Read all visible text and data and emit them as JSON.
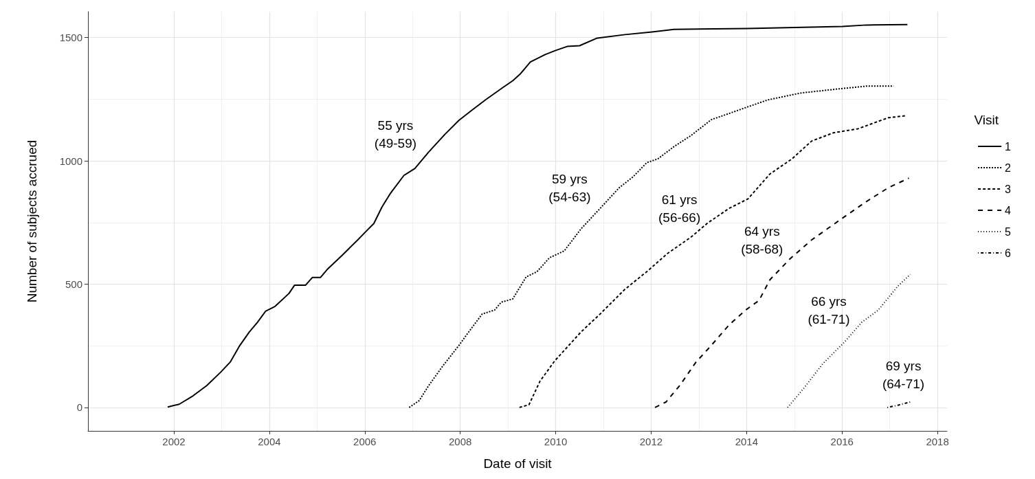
{
  "chart_data": {
    "type": "line",
    "xlabel": "Date of visit",
    "ylabel": "Number of subjects accrued",
    "legend_title": "Visit",
    "legend": "right",
    "grid": true,
    "xlim": [
      2000.2,
      2018.2
    ],
    "xticks": [
      2002,
      2004,
      2006,
      2008,
      2010,
      2012,
      2014,
      2016,
      2018
    ],
    "ylim": [
      -95,
      1605
    ],
    "yticks": [
      0,
      500,
      1000,
      1500
    ],
    "series": [
      {
        "name": "1",
        "color": "#000000",
        "line_style": "solid",
        "x": [
          2001.87,
          2002.11,
          2002.4,
          2002.69,
          2002.98,
          2003.18,
          2003.38,
          2003.58,
          2003.75,
          2003.92,
          2004.12,
          2004.41,
          2004.53,
          2004.76,
          2004.9,
          2005.07,
          2005.21,
          2005.53,
          2005.85,
          2006.02,
          2006.19,
          2006.36,
          2006.54,
          2006.82,
          2007.05,
          2007.34,
          2007.68,
          2007.97,
          2008.26,
          2008.54,
          2008.89,
          2009.1,
          2009.26,
          2009.47,
          2009.78,
          2010.0,
          2010.24,
          2010.5,
          2010.87,
          2011.45,
          2012.02,
          2012.48,
          2014.01,
          2016.01,
          2016.51,
          2017.37
        ],
        "values": [
          2,
          13,
          47,
          89,
          143,
          184,
          251,
          306,
          345,
          390,
          410,
          462,
          496,
          496,
          527,
          527,
          559,
          618,
          679,
          713,
          746,
          813,
          869,
          941,
          969,
          1036,
          1108,
          1164,
          1208,
          1249,
          1297,
          1325,
          1353,
          1401,
          1431,
          1448,
          1464,
          1467,
          1498,
          1512,
          1523,
          1533,
          1537,
          1545,
          1551,
          1553
        ]
      },
      {
        "name": "2",
        "color": "#000000",
        "line_style": "shortdash",
        "x": [
          2006.93,
          2007.14,
          2007.34,
          2007.63,
          2007.97,
          2008.2,
          2008.46,
          2008.72,
          2008.86,
          2009.1,
          2009.38,
          2009.61,
          2009.87,
          2010.18,
          2010.53,
          2010.93,
          2011.33,
          2011.62,
          2011.91,
          2012.14,
          2012.48,
          2012.83,
          2013.26,
          2013.63,
          2013.98,
          2014.44,
          2015.13,
          2015.93,
          2016.51,
          2017.08
        ],
        "values": [
          0,
          28,
          89,
          167,
          251,
          312,
          379,
          395,
          427,
          440,
          529,
          551,
          607,
          635,
          724,
          807,
          891,
          935,
          993,
          1008,
          1058,
          1102,
          1167,
          1192,
          1216,
          1247,
          1275,
          1292,
          1303,
          1303
        ]
      },
      {
        "name": "3",
        "color": "#000000",
        "line_style": "dashed",
        "x": [
          2009.24,
          2009.44,
          2009.67,
          2009.98,
          2010.53,
          2010.93,
          2011.45,
          2011.91,
          2012.34,
          2012.83,
          2013.17,
          2013.63,
          2014.03,
          2014.49,
          2014.95,
          2015.36,
          2015.82,
          2016.33,
          2016.97,
          2017.34
        ],
        "values": [
          0,
          11,
          106,
          189,
          306,
          379,
          479,
          551,
          624,
          690,
          746,
          807,
          846,
          947,
          1008,
          1080,
          1114,
          1130,
          1175,
          1183
        ]
      },
      {
        "name": "4",
        "color": "#000000",
        "line_style": "longdash",
        "x": [
          2012.08,
          2012.31,
          2012.6,
          2012.94,
          2013.23,
          2013.63,
          2013.98,
          2014.26,
          2014.49,
          2014.9,
          2015.36,
          2015.93,
          2016.51,
          2016.97,
          2017.4
        ],
        "values": [
          0,
          22,
          89,
          184,
          245,
          334,
          395,
          434,
          518,
          601,
          679,
          757,
          835,
          891,
          930
        ]
      },
      {
        "name": "5",
        "color": "#000000",
        "line_style": "dotted",
        "x": [
          2014.86,
          2015.2,
          2015.6,
          2016.06,
          2016.41,
          2016.76,
          2017.16,
          2017.43
        ],
        "values": [
          0,
          78,
          178,
          267,
          345,
          395,
          490,
          540
        ]
      },
      {
        "name": "6",
        "color": "#000000",
        "line_style": "dotdash",
        "x": [
          2016.95,
          2017.17,
          2017.43
        ],
        "values": [
          0,
          9,
          22
        ]
      }
    ],
    "annotations": [
      "55 yrs\n(49-59)",
      "59 yrs\n(54-63)",
      "61 yrs\n(56-66)",
      "64 yrs\n(58-68)",
      "66 yrs\n(61-71)",
      "69 yrs\n(64-71)"
    ]
  }
}
